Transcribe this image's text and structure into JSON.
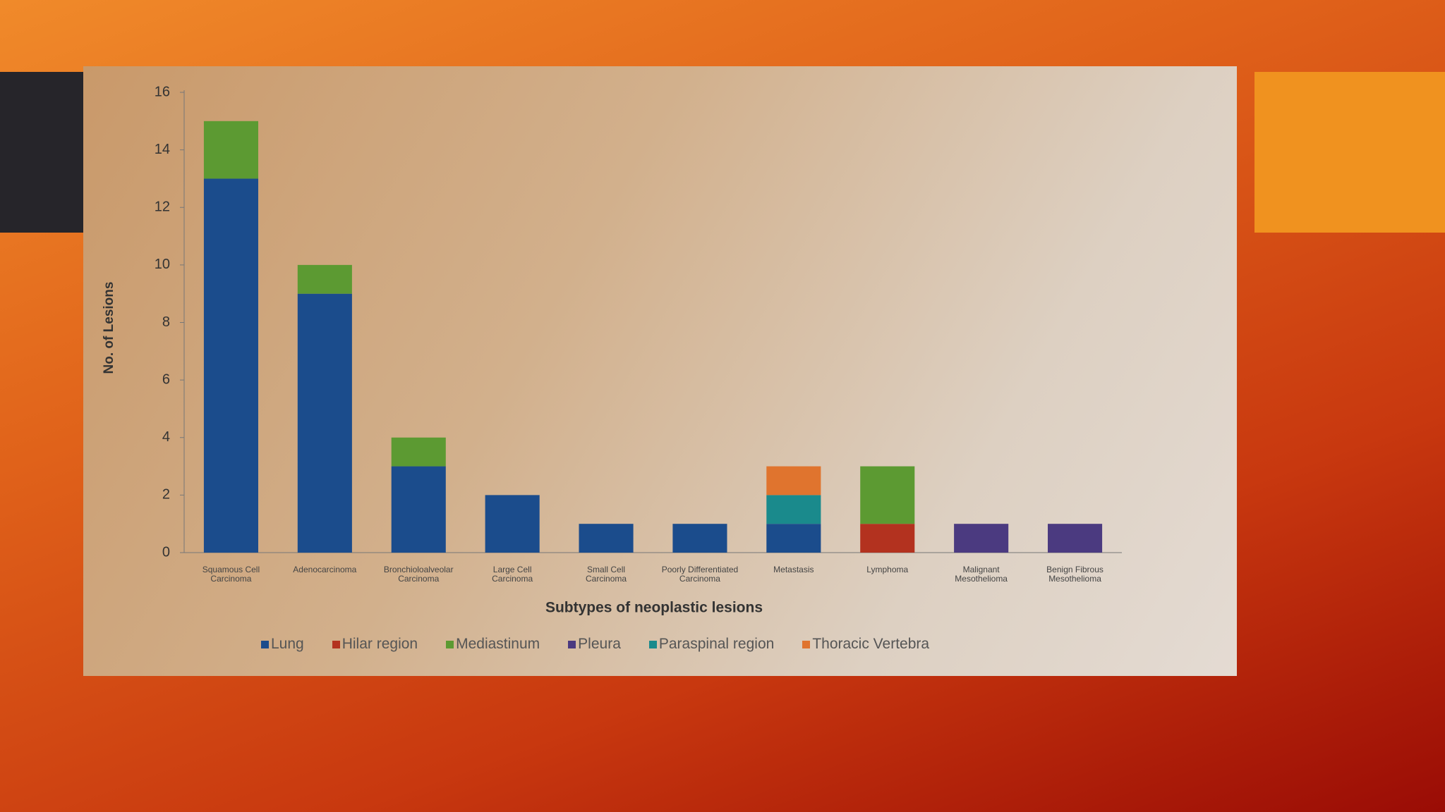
{
  "chart_data": {
    "type": "stacked-bar",
    "y_label": "No. of Lesions",
    "x_label": "Subtypes of neoplastic lesions",
    "categories": [
      "Squamous Cell Carcinoma",
      "Adenocarcinoma",
      "Bronchioloalveolar Carcinoma",
      "Large Cell Carcinoma",
      "Small Cell Carcinoma",
      "Poorly Differentiated Carcinoma",
      "Metastasis",
      "Lymphoma",
      "Malignant Mesothelioma",
      "Benign Fibrous Mesothelioma"
    ],
    "series": [
      {
        "name": "Lung",
        "color": "#1b4c8c",
        "values": [
          13,
          9,
          3,
          2,
          1,
          1,
          1,
          0,
          0,
          0
        ]
      },
      {
        "name": "Hilar region",
        "color": "#b3321f",
        "values": [
          0,
          0,
          0,
          0,
          0,
          0,
          0,
          1,
          0,
          0
        ]
      },
      {
        "name": "Mediastinum",
        "color": "#5c9a32",
        "values": [
          2,
          1,
          1,
          0,
          0,
          0,
          0,
          2,
          0,
          0
        ]
      },
      {
        "name": "Pleura",
        "color": "#4b3a80",
        "values": [
          0,
          0,
          0,
          0,
          0,
          0,
          0,
          0,
          1,
          1
        ]
      },
      {
        "name": "Paraspinal region",
        "color": "#1a8a8c",
        "values": [
          0,
          0,
          0,
          0,
          0,
          0,
          1,
          0,
          0,
          0
        ]
      },
      {
        "name": "Thoracic Vertebra",
        "color": "#e0742e",
        "values": [
          0,
          0,
          0,
          0,
          0,
          0,
          1,
          0,
          0,
          0
        ]
      }
    ],
    "ylim": [
      0,
      16
    ],
    "yticks": [
      0,
      2,
      4,
      6,
      8,
      10,
      12,
      14,
      16
    ],
    "grid": false
  }
}
